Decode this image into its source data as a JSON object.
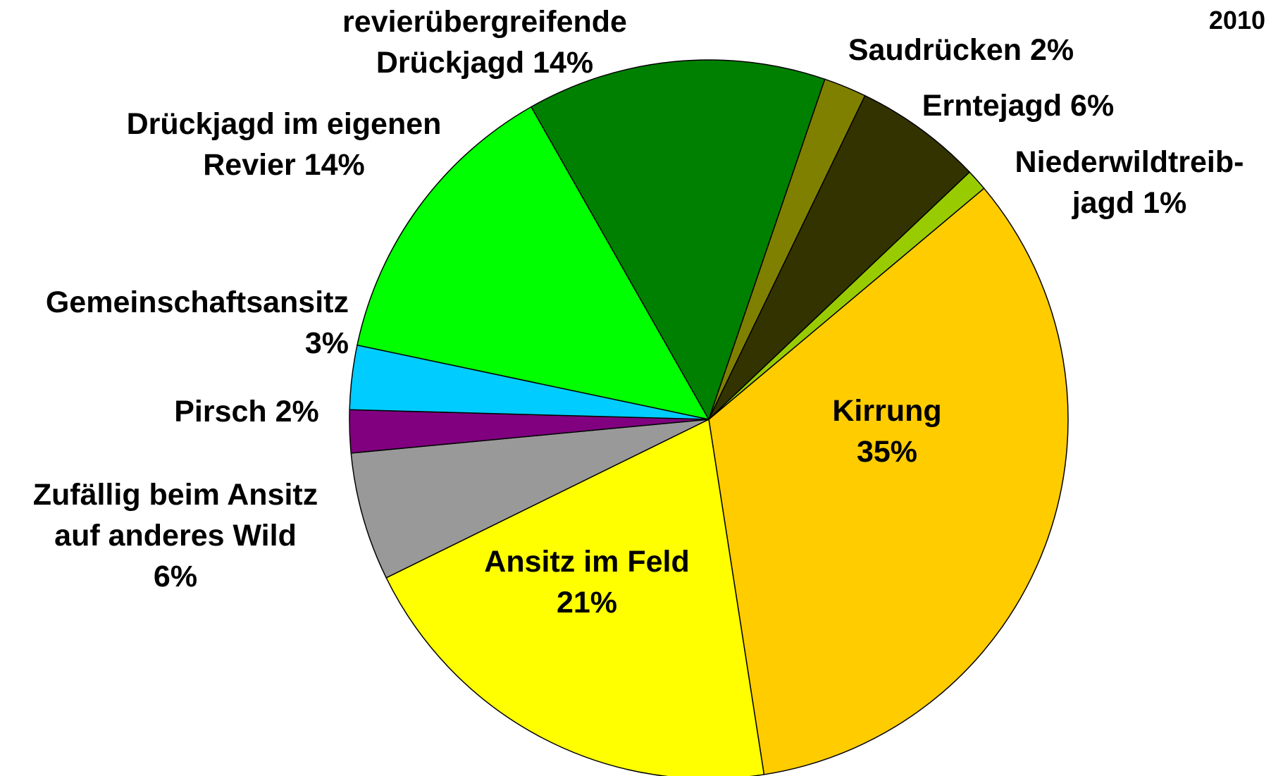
{
  "chart_data": {
    "type": "pie",
    "title": "2010",
    "categories": [
      "Kirrung",
      "Ansitz im Feld",
      "Zufällig beim Ansitz auf anderes Wild",
      "Pirsch",
      "Gemeinschaftsansitz",
      "Drückjagd im eigenen Revier",
      "revierübergreifende Drückjagd",
      "Saudrücken",
      "Erntejagd",
      "Niederwildtreib-jagd"
    ],
    "values": [
      35,
      21,
      6,
      2,
      3,
      14,
      14,
      2,
      6,
      1
    ],
    "value_labels": [
      "35%",
      "21%",
      "6%",
      "2%",
      "3%",
      "14%",
      "14%",
      "2%",
      "6%",
      "1%"
    ],
    "colors": [
      "#ffcc00",
      "#ffff00",
      "#999999",
      "#800080",
      "#00ccff",
      "#00ff00",
      "#008000",
      "#808000",
      "#333300",
      "#99cc00"
    ]
  }
}
